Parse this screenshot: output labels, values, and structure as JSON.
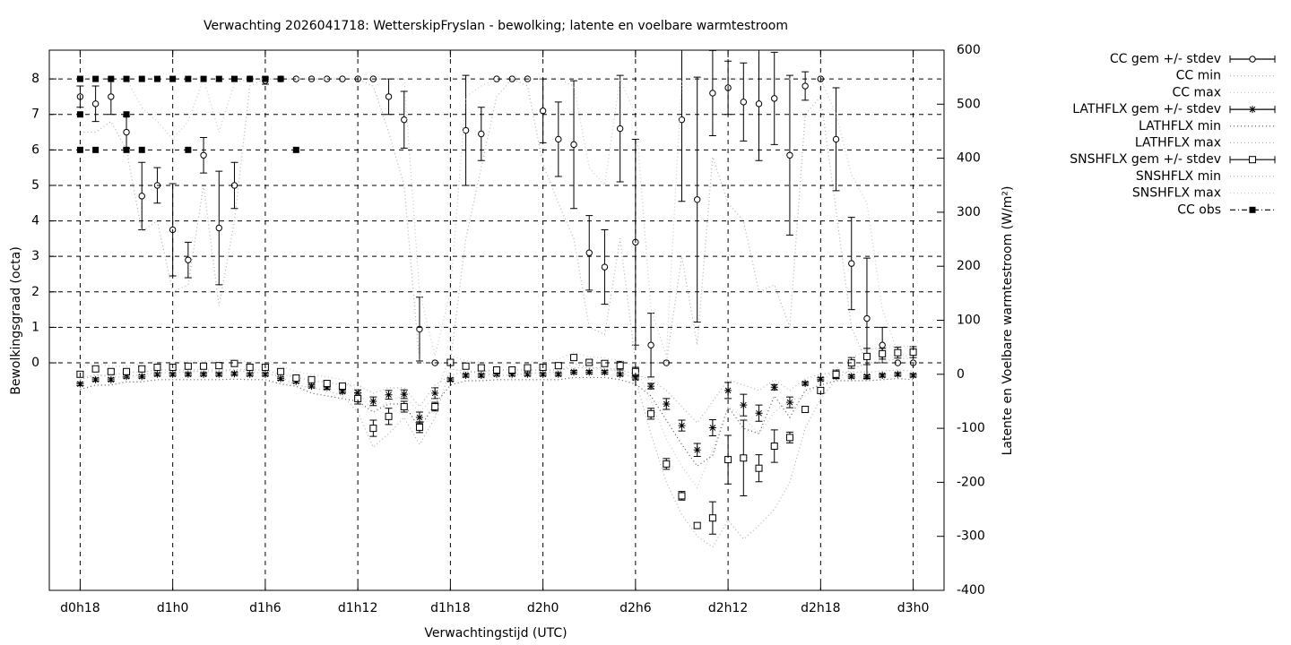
{
  "chart_data": {
    "type": "errorbar",
    "title": "Verwachting 2026041718: WetterskipFryslan - bewolking; latente en voelbare warmtestroom",
    "xlabel": "Verwachtingstijd (UTC)",
    "ylabel": "Bewolkingsgraad (octa)",
    "y2label": "Latente en Voelbare warmtestroom (W/m²)",
    "xlim": [
      -2,
      56
    ],
    "xticks": [
      {
        "value": 0,
        "label": "d0h18"
      },
      {
        "value": 6,
        "label": "d1h0"
      },
      {
        "value": 12,
        "label": "d1h6"
      },
      {
        "value": 18,
        "label": "d1h12"
      },
      {
        "value": 24,
        "label": "d1h18"
      },
      {
        "value": 30,
        "label": "d2h0"
      },
      {
        "value": 36,
        "label": "d2h6"
      },
      {
        "value": 42,
        "label": "d2h12"
      },
      {
        "value": 48,
        "label": "d2h18"
      },
      {
        "value": 54,
        "label": "d3h0"
      }
    ],
    "ylim": [
      -6.41,
      8.81
    ],
    "yticks": [
      0,
      1,
      2,
      3,
      4,
      5,
      6,
      7,
      8
    ],
    "y2lim": [
      -400,
      600
    ],
    "y2ticks": [
      -400,
      -300,
      -200,
      -100,
      0,
      100,
      200,
      300,
      400,
      500,
      600
    ],
    "grid": true,
    "legend": "outside-top-right",
    "x": [
      0,
      1,
      2,
      3,
      4,
      5,
      6,
      7,
      8,
      9,
      10,
      11,
      12,
      13,
      14,
      15,
      16,
      17,
      18,
      19,
      20,
      21,
      22,
      23,
      24,
      25,
      26,
      27,
      28,
      29,
      30,
      31,
      32,
      33,
      34,
      35,
      36,
      37,
      38,
      39,
      40,
      41,
      42,
      43,
      44,
      45,
      46,
      47,
      48,
      49,
      50,
      51,
      52,
      53,
      54
    ],
    "series": [
      {
        "name": "CC gem +/- stdev",
        "color": "#000000",
        "marker": "circle",
        "style": "errorbar",
        "values": [
          7.5,
          7.3,
          7.5,
          6.5,
          4.7,
          5.0,
          3.75,
          2.9,
          5.85,
          3.8,
          5.0,
          8,
          7.95,
          8,
          8,
          8,
          8,
          8,
          8,
          8,
          7.5,
          6.85,
          0.95,
          0,
          0,
          6.55,
          6.45,
          8,
          8,
          8,
          7.1,
          6.3,
          6.15,
          3.1,
          2.7,
          6.6,
          3.4,
          0.5,
          0,
          6.85,
          4.6,
          7.6,
          7.75,
          7.35,
          7.3,
          7.45,
          5.85,
          7.8,
          8,
          6.3,
          2.8,
          1.25,
          0.5,
          0,
          0
        ],
        "errors": [
          0.3,
          0.5,
          0.5,
          0.45,
          0.95,
          0.5,
          1.3,
          0.5,
          0.5,
          1.6,
          0.65,
          0,
          0.1,
          0,
          0,
          0,
          0,
          0,
          0,
          0,
          0.5,
          0.8,
          0.9,
          0,
          0,
          1.55,
          0.75,
          0,
          0,
          0,
          0.9,
          1.05,
          1.8,
          1.05,
          1.05,
          1.5,
          2.9,
          0.9,
          0,
          2.3,
          3.45,
          1.2,
          0.75,
          1.1,
          1.6,
          1.3,
          2.25,
          0.4,
          0,
          1.45,
          1.3,
          1.7,
          0.5,
          0,
          0
        ]
      },
      {
        "name": "CC min",
        "color": "#b0b0b0",
        "marker": "none",
        "style": "dotted",
        "values": [
          6.5,
          6.5,
          6.8,
          6,
          3.7,
          4,
          2,
          2.2,
          5,
          1.6,
          4,
          7.8,
          8,
          8,
          8,
          8,
          8,
          8,
          8,
          7.8,
          6.5,
          5,
          0,
          0,
          0,
          3.5,
          5.5,
          7.5,
          8,
          7.8,
          5.6,
          4.5,
          3.5,
          1,
          0.8,
          3.5,
          0,
          0,
          0,
          3,
          0.5,
          5.8,
          4.5,
          4,
          2,
          2.2,
          1,
          7,
          7.5,
          4.3,
          1,
          0,
          0,
          0,
          0
        ]
      },
      {
        "name": "CC max",
        "color": "#c8c8c8",
        "marker": "none",
        "style": "dotted",
        "values": [
          8,
          8,
          8,
          8,
          7.2,
          6.8,
          6.3,
          6.8,
          8,
          6.5,
          7.9,
          8,
          8,
          8,
          8,
          8,
          8,
          8,
          8,
          8,
          8,
          8,
          2,
          0.2,
          2,
          7.5,
          7.8,
          8,
          8,
          8,
          8,
          8,
          7.8,
          5.5,
          5,
          8,
          7,
          1.5,
          0.2,
          8,
          8,
          8,
          8,
          8,
          8,
          8,
          8,
          8,
          8,
          7,
          5.3,
          4.5,
          1.5,
          0.3,
          0.1
        ]
      },
      {
        "name": "LATHFLX gem +/- stdev",
        "color": "#000000",
        "marker": "asterisk",
        "style": "errorbar",
        "axis": "y2",
        "values": [
          -18,
          -10,
          -10,
          -4,
          -4,
          0,
          0,
          0,
          0,
          0,
          1,
          0,
          0,
          -8,
          -13,
          -22,
          -25,
          -32,
          -34,
          -50,
          -38,
          -37,
          -80,
          -35,
          -10,
          -2,
          -2,
          0,
          0,
          0,
          0,
          0,
          4,
          4,
          4,
          0,
          -7,
          -22,
          -55,
          -95,
          -140,
          -99,
          -30,
          -57,
          -72,
          -24,
          -52,
          -17,
          -9,
          -4,
          -4,
          -4,
          -2,
          0,
          -2
        ],
        "errors": [
          3,
          3,
          3,
          3,
          3,
          3,
          3,
          3,
          3,
          3,
          3,
          3,
          3,
          3,
          3,
          3,
          3,
          3,
          5,
          8,
          8,
          8,
          10,
          10,
          3,
          3,
          3,
          3,
          3,
          3,
          3,
          3,
          3,
          3,
          3,
          3,
          3,
          5,
          10,
          10,
          12,
          15,
          15,
          20,
          15,
          5,
          10,
          3,
          3,
          3,
          3,
          3,
          3,
          3,
          3
        ]
      },
      {
        "name": "LATHFLX min",
        "color": "#555555",
        "marker": "none",
        "style": "dotted",
        "axis": "y2",
        "values": [
          -28,
          -20,
          -20,
          -14,
          -14,
          -10,
          -10,
          -10,
          -10,
          -10,
          -9,
          -10,
          -10,
          -18,
          -22,
          -35,
          -40,
          -45,
          -50,
          -70,
          -55,
          -55,
          -100,
          -55,
          -20,
          -12,
          -12,
          -10,
          -10,
          -10,
          -10,
          -10,
          -6,
          -6,
          -6,
          -10,
          -18,
          -40,
          -85,
          -130,
          -170,
          -150,
          -60,
          -100,
          -110,
          -40,
          -80,
          -30,
          -20,
          -12,
          -12,
          -12,
          -10,
          -8,
          -10
        ]
      },
      {
        "name": "LATHFLX max",
        "color": "#b0b0b0",
        "marker": "none",
        "style": "dotted",
        "axis": "y2",
        "values": [
          -10,
          -2,
          -2,
          4,
          4,
          8,
          8,
          8,
          8,
          8,
          9,
          8,
          8,
          0,
          -5,
          -12,
          -15,
          -20,
          -20,
          -35,
          -25,
          -25,
          -60,
          -20,
          -2,
          5,
          5,
          8,
          8,
          8,
          8,
          8,
          12,
          12,
          12,
          8,
          0,
          -10,
          -30,
          -60,
          -90,
          -50,
          -10,
          -20,
          -30,
          -10,
          -30,
          -8,
          0,
          4,
          4,
          4,
          6,
          8,
          6
        ]
      },
      {
        "name": "SNSHFLX gem +/- stdev",
        "color": "#000000",
        "marker": "square",
        "style": "errorbar",
        "axis": "y2",
        "values": [
          0,
          10,
          5,
          5,
          10,
          13,
          13,
          15,
          15,
          16,
          20,
          13,
          13,
          5,
          -7,
          -10,
          -17,
          -22,
          -45,
          -100,
          -78,
          -60,
          -98,
          -60,
          22,
          15,
          12,
          8,
          8,
          12,
          13,
          16,
          31,
          22,
          20,
          16,
          5,
          -73,
          -166,
          -225,
          -280,
          -266,
          -158,
          -155,
          -174,
          -133,
          -117,
          -65,
          -30,
          0,
          21,
          33,
          38,
          40,
          41
        ],
        "errors": [
          5,
          5,
          5,
          5,
          5,
          5,
          5,
          5,
          5,
          5,
          5,
          5,
          5,
          5,
          5,
          5,
          5,
          5,
          10,
          15,
          15,
          10,
          10,
          8,
          5,
          5,
          5,
          5,
          5,
          5,
          5,
          5,
          5,
          5,
          5,
          8,
          8,
          10,
          10,
          8,
          5,
          30,
          45,
          70,
          25,
          30,
          10,
          5,
          5,
          8,
          10,
          15,
          10,
          10,
          10
        ]
      },
      {
        "name": "SNSHFLX min",
        "color": "#b0b0b0",
        "marker": "none",
        "style": "dotted",
        "axis": "y2",
        "values": [
          -10,
          0,
          -5,
          -5,
          0,
          3,
          3,
          5,
          5,
          5,
          8,
          3,
          3,
          -5,
          -20,
          -25,
          -30,
          -40,
          -70,
          -135,
          -110,
          -80,
          -130,
          -80,
          10,
          5,
          2,
          -2,
          -2,
          2,
          3,
          5,
          20,
          12,
          10,
          5,
          -10,
          -110,
          -200,
          -260,
          -300,
          -320,
          -270,
          -305,
          -280,
          -250,
          -200,
          -100,
          -45,
          -10,
          10,
          20,
          25,
          28,
          30
        ]
      },
      {
        "name": "SNSHFLX max",
        "color": "#c8c8c8",
        "marker": "none",
        "style": "dotted",
        "axis": "y2",
        "values": [
          15,
          20,
          15,
          15,
          20,
          22,
          22,
          25,
          25,
          25,
          28,
          22,
          22,
          15,
          5,
          0,
          -5,
          -10,
          -30,
          -70,
          -50,
          -40,
          -70,
          -40,
          35,
          25,
          22,
          18,
          18,
          22,
          25,
          28,
          40,
          32,
          30,
          25,
          15,
          -50,
          -120,
          -170,
          -210,
          -140,
          -60,
          -80,
          -110,
          -70,
          -50,
          -40,
          -15,
          10,
          30,
          45,
          50,
          52,
          52
        ]
      },
      {
        "name": "CC obs",
        "color": "#000000",
        "marker": "filled-square",
        "style": "points",
        "x": [
          0,
          0,
          0,
          1,
          1,
          2,
          3,
          3,
          3,
          4,
          4,
          5,
          6,
          7,
          7,
          8,
          9,
          10,
          11,
          12,
          13,
          14
        ],
        "values": [
          8,
          7,
          6,
          8,
          6,
          8,
          8,
          7,
          6,
          8,
          6,
          8,
          8,
          8,
          6,
          8,
          8,
          8,
          8,
          8,
          8,
          6
        ]
      }
    ]
  }
}
